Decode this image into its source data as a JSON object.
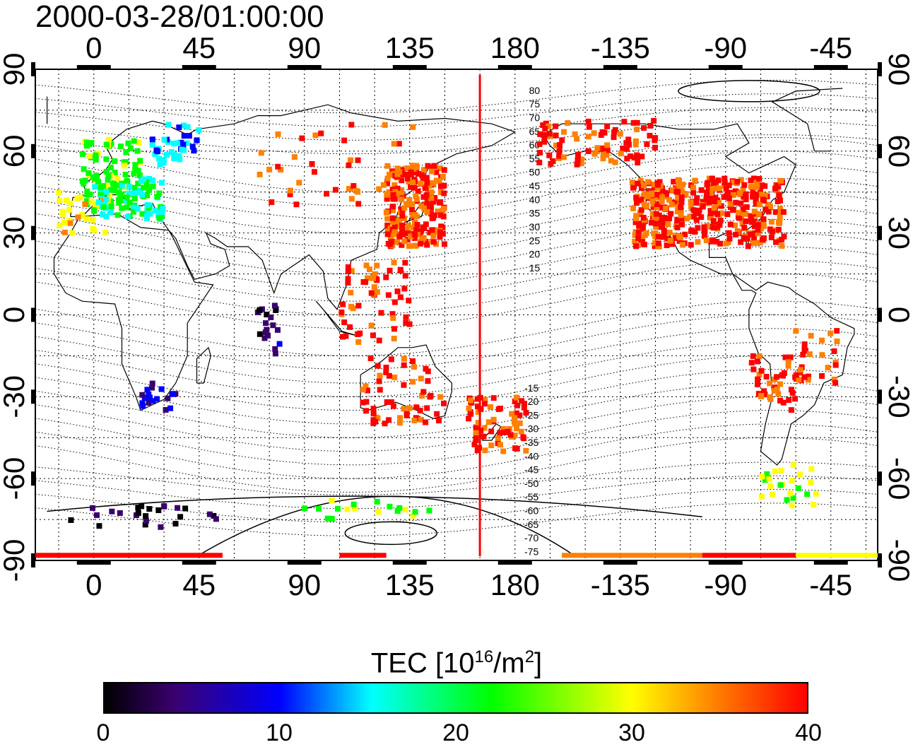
{
  "title": "2000-03-28/01:00:00",
  "map": {
    "top_lon_ticks": [
      "0",
      "45",
      "90",
      "135",
      "180",
      "-135",
      "-90",
      "-45"
    ],
    "bottom_lon_ticks": [
      "0",
      "45",
      "90",
      "135",
      "180",
      "-135",
      "-90",
      "-45"
    ],
    "left_lat_ticks": [
      "90",
      "60",
      "30",
      "0",
      "-30",
      "-60",
      "-90"
    ],
    "right_lat_ticks": [
      "90",
      "60",
      "30",
      "0",
      "-30",
      "-60",
      "-90"
    ],
    "lon_range": [
      -25,
      335
    ],
    "lat_range": [
      -90,
      90
    ],
    "grid": true,
    "projection": "equirectangular",
    "meridian_marker_lon": 165,
    "meridian_marker_color": "#ff0000",
    "contour_labels_north": [
      "80",
      "75",
      "70",
      "65",
      "60",
      "55",
      "50",
      "45",
      "40",
      "35",
      "30",
      "25",
      "20",
      "15"
    ],
    "contour_labels_south": [
      "-15",
      "-20",
      "-25",
      "-30",
      "-35",
      "-40",
      "-45",
      "-50",
      "-55",
      "-60",
      "-65",
      "-70",
      "-75"
    ]
  },
  "colorbar": {
    "title_prefix": "TEC  [10",
    "title_exp1": "16",
    "title_mid": "/m",
    "title_exp2": "2",
    "title_suffix": "]",
    "ticks": [
      "0",
      "10",
      "20",
      "30",
      "40"
    ],
    "range": [
      0,
      40
    ],
    "colors": [
      "#000000",
      "#3a0070",
      "#0000ff",
      "#00ffff",
      "#00ff00",
      "#ffff00",
      "#ff8000",
      "#ff0000"
    ]
  }
}
